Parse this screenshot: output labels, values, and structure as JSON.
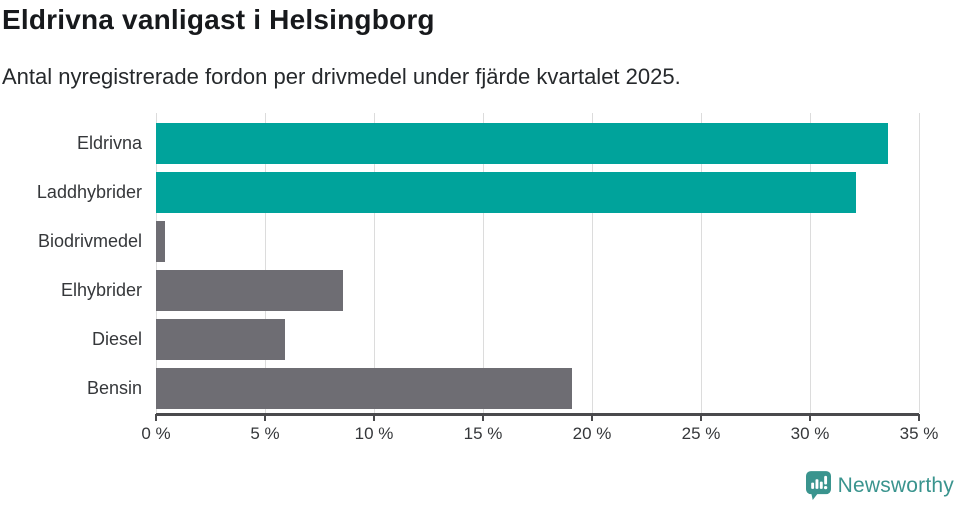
{
  "title": "Eldrivna vanligast i Helsingborg",
  "subtitle": "Antal nyregistrerade fordon per drivmedel under fjärde kvartalet 2025.",
  "chart_data": {
    "type": "bar",
    "orientation": "horizontal",
    "title": "Eldrivna vanligast i Helsingborg",
    "subtitle": "Antal nyregistrerade fordon per drivmedel under fjärde kvartalet 2025.",
    "categories": [
      "Eldrivna",
      "Laddhybrider",
      "Biodrivmedel",
      "Elhybrider",
      "Diesel",
      "Bensin"
    ],
    "values": [
      33.6,
      32.1,
      0.4,
      8.6,
      5.9,
      19.1
    ],
    "unit": "%",
    "bar_colors": [
      "#00a39b",
      "#00a39b",
      "#6e6d73",
      "#6e6d73",
      "#6e6d73",
      "#6e6d73"
    ],
    "xlim": [
      0,
      35
    ],
    "x_ticks": [
      0,
      5,
      10,
      15,
      20,
      25,
      30,
      35
    ],
    "x_tick_labels": [
      "0 %",
      "5 %",
      "10 %",
      "15 %",
      "20 %",
      "25 %",
      "30 %",
      "35 %"
    ],
    "grid": "vertical",
    "xlabel": "",
    "ylabel": "",
    "legend": "none"
  },
  "colors": {
    "highlight_teal": "#00a39b",
    "neutral_gray": "#6e6d73",
    "axis": "#4a4a4d",
    "gridline": "#dcdcdc",
    "brand_teal": "#3a948e"
  },
  "footer": {
    "brand": "Newsworthy",
    "logo_icon": "newsworthy-speech-bubble-chart-icon"
  }
}
